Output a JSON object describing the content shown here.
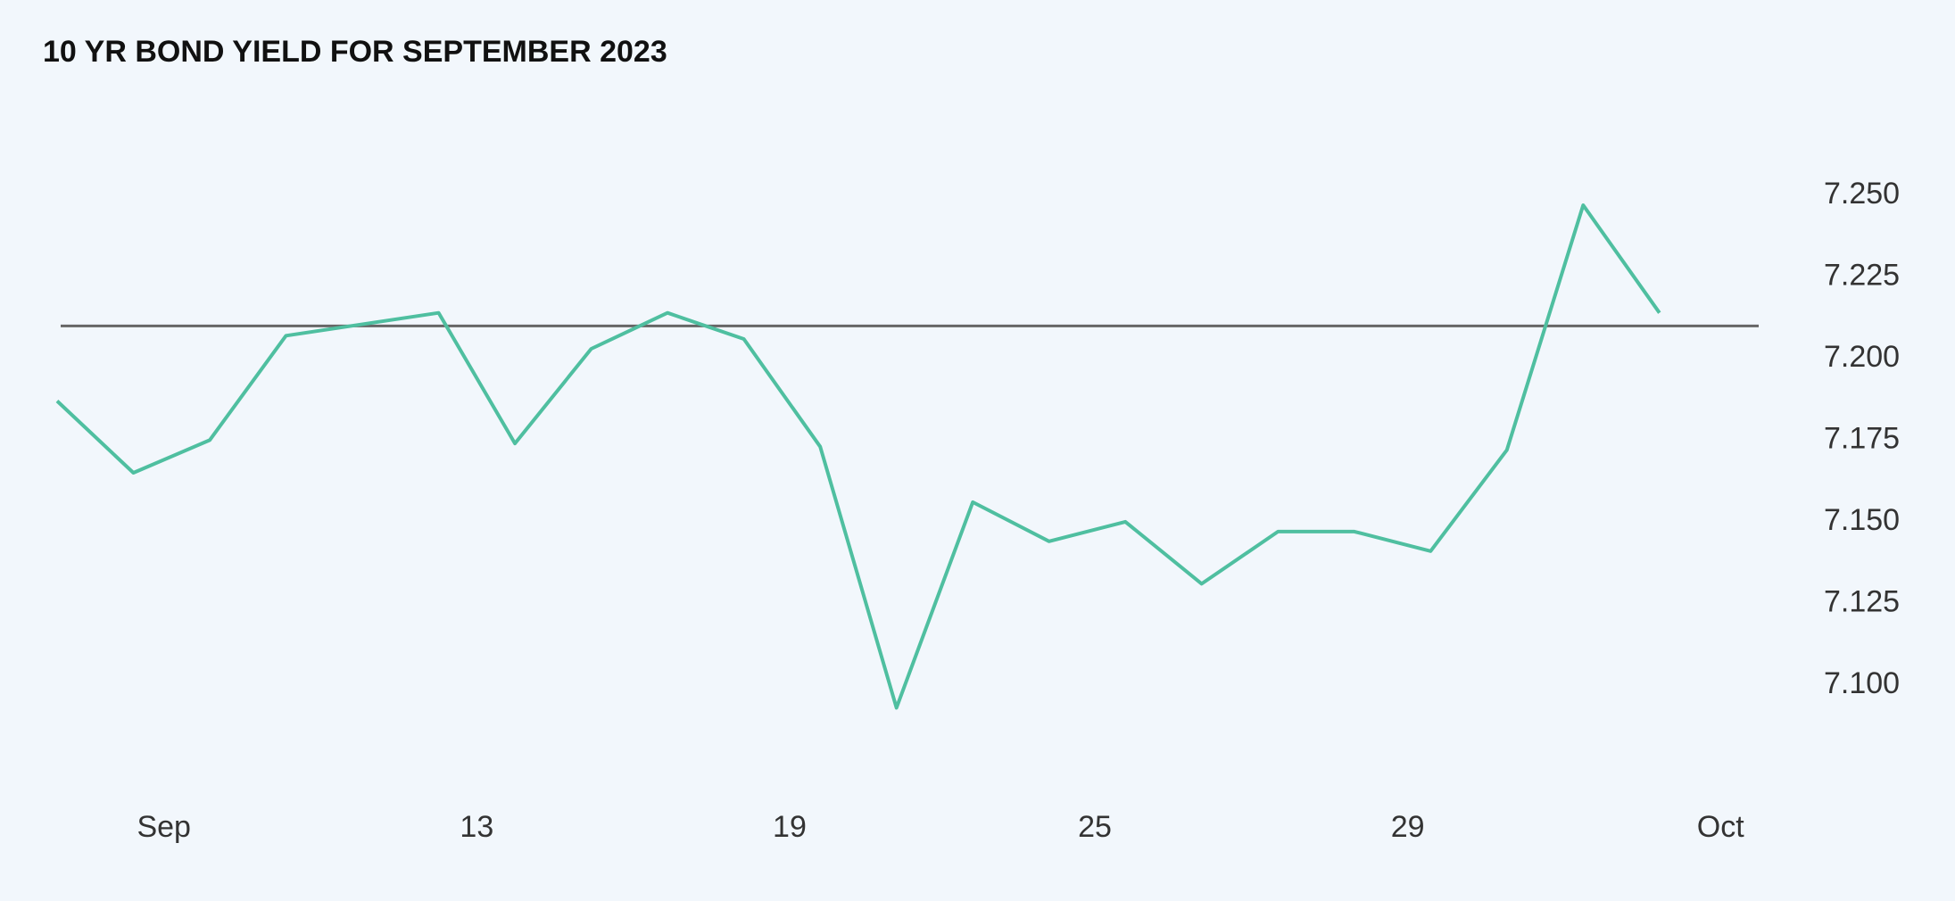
{
  "chart_data": {
    "type": "line",
    "title": "10 YR BOND YIELD FOR SEPTEMBER 2023",
    "x": [
      0,
      1,
      2,
      3,
      5,
      6,
      7,
      8,
      9,
      10,
      11,
      12,
      13,
      14,
      15,
      16,
      17,
      18,
      19,
      20,
      21
    ],
    "series": [
      {
        "color": "#4fbfa0",
        "values": [
          7.187,
          7.165,
          7.175,
          7.207,
          7.214,
          7.174,
          7.203,
          7.214,
          7.206,
          7.173,
          7.093,
          7.156,
          7.144,
          7.15,
          7.131,
          7.147,
          7.147,
          7.141,
          7.172,
          7.247,
          7.214
        ]
      }
    ],
    "reference_line": {
      "value": 7.21,
      "color": "#666666"
    },
    "xlim": [
      0,
      22.3
    ],
    "xticks": [
      {
        "value": 1.4,
        "label": "Sep"
      },
      {
        "value": 5.5,
        "label": "13"
      },
      {
        "value": 9.6,
        "label": "19"
      },
      {
        "value": 13.6,
        "label": "25"
      },
      {
        "value": 17.7,
        "label": "29"
      },
      {
        "value": 21.8,
        "label": "Oct"
      }
    ],
    "ylim": [
      7.08,
      7.26
    ],
    "yticks": [
      {
        "value": 7.1,
        "label": "7.100"
      },
      {
        "value": 7.125,
        "label": "7.125"
      },
      {
        "value": 7.15,
        "label": "7.150"
      },
      {
        "value": 7.175,
        "label": "7.175"
      },
      {
        "value": 7.2,
        "label": "7.200"
      },
      {
        "value": 7.225,
        "label": "7.225"
      },
      {
        "value": 7.25,
        "label": "7.250"
      }
    ],
    "grid": false
  }
}
